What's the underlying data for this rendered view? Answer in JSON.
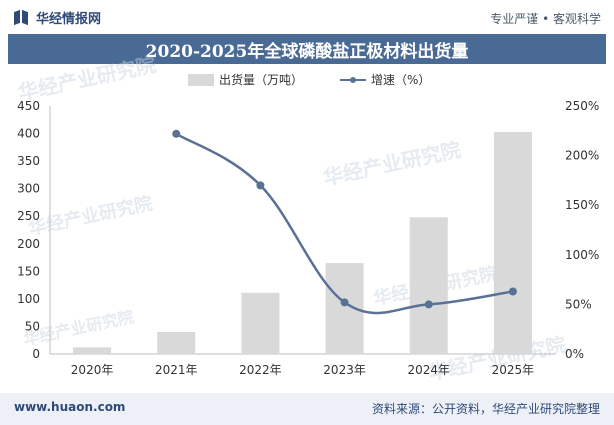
{
  "header": {
    "brand": "华经情报网",
    "tagline": "专业严谨 • 客观科学"
  },
  "title": "2020-2025年全球磷酸盐正极材料出货量",
  "legend": {
    "bar_label": "出货量（万吨）",
    "line_label": "增速（%）"
  },
  "watermark_text": "华经产业研究院",
  "footer": {
    "website": "www.huaon.com",
    "source": "资料来源：公开资料，华经产业研究院整理"
  },
  "colors": {
    "title_bar": "#4a6a96",
    "bar": "#d9d9d9",
    "line": "#5a7196",
    "footer_bg": "#edf1f7"
  },
  "chart_data": {
    "type": "bar",
    "title": "2020-2025年全球磷酸盐正极材料出货量",
    "categories": [
      "2020年",
      "2021年",
      "2022年",
      "2023年",
      "2024年",
      "2025年"
    ],
    "series": [
      {
        "name": "出货量（万吨）",
        "type": "bar",
        "axis": "left",
        "values": [
          12,
          40,
          111,
          165,
          248,
          403
        ]
      },
      {
        "name": "增速（%）",
        "type": "line",
        "axis": "right",
        "values": [
          null,
          222,
          170,
          52,
          50,
          63
        ]
      }
    ],
    "y_left": {
      "ylim": [
        0,
        450
      ],
      "ticks": [
        0,
        50,
        100,
        150,
        200,
        250,
        300,
        350,
        400,
        450
      ]
    },
    "y_right": {
      "ylim": [
        0,
        250
      ],
      "ticks": [
        "0%",
        "50%",
        "100%",
        "150%",
        "200%",
        "250%"
      ]
    },
    "legend_position": "top-center",
    "grid": false
  }
}
